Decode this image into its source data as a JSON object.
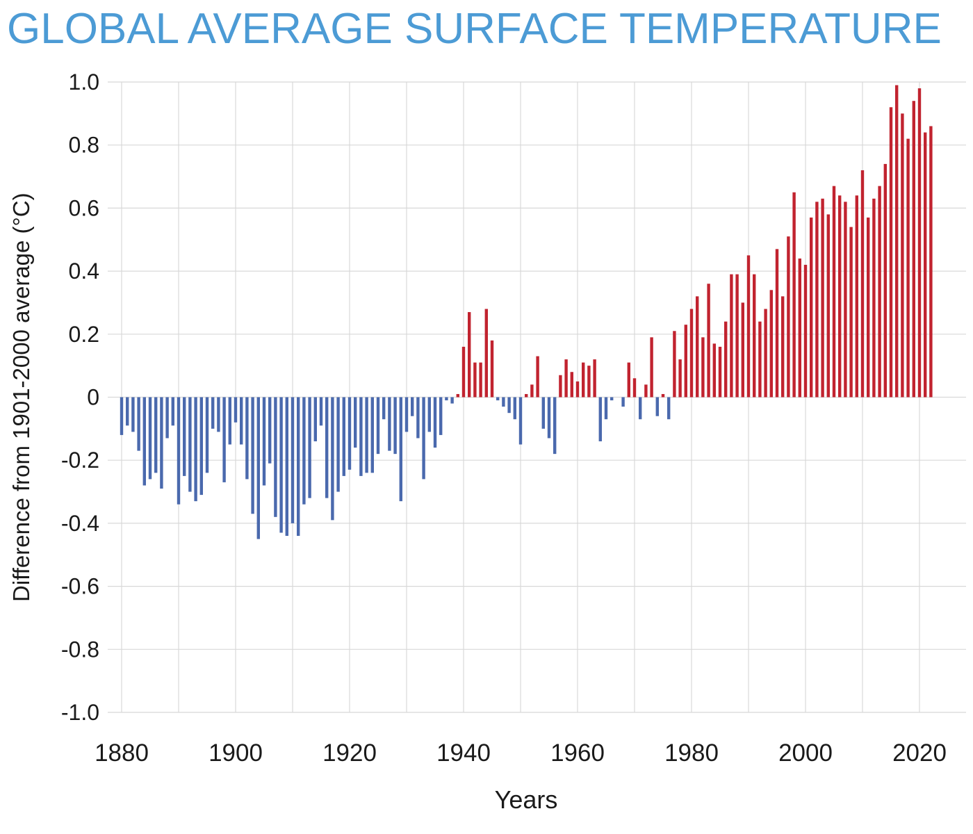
{
  "title": "GLOBAL AVERAGE SURFACE TEMPERATURE",
  "chart_data": {
    "type": "bar",
    "title": "GLOBAL AVERAGE SURFACE TEMPERATURE",
    "xlabel": "Years",
    "ylabel": "Difference from 1901-2000 average (°C)",
    "ylim": [
      -1.0,
      1.0
    ],
    "ytick_step": 0.2,
    "ytick_labels": [
      "1.0",
      "0.8",
      "0.6",
      "0.4",
      "0.2",
      "0",
      "-0.2",
      "-0.4",
      "-0.6",
      "-0.8",
      "-1.0"
    ],
    "xticks": [
      1880,
      1900,
      1920,
      1940,
      1960,
      1980,
      2000,
      2020
    ],
    "x_gridline_step": 10,
    "grid": true,
    "legend": "none",
    "colors": {
      "positive_bar": "#c1232f",
      "negative_bar": "#4a69ad",
      "title_text": "#4c9bd5",
      "gridline": "#d8d8d8",
      "axis_text": "#1a1a1a"
    },
    "start_year": 1880,
    "end_year": 2022,
    "values": [
      -0.12,
      -0.09,
      -0.11,
      -0.17,
      -0.28,
      -0.26,
      -0.24,
      -0.29,
      -0.13,
      -0.09,
      -0.34,
      -0.25,
      -0.3,
      -0.33,
      -0.31,
      -0.24,
      -0.1,
      -0.11,
      -0.27,
      -0.15,
      -0.08,
      -0.15,
      -0.26,
      -0.37,
      -0.45,
      -0.28,
      -0.21,
      -0.38,
      -0.43,
      -0.44,
      -0.4,
      -0.44,
      -0.34,
      -0.32,
      -0.14,
      -0.09,
      -0.32,
      -0.39,
      -0.3,
      -0.25,
      -0.23,
      -0.16,
      -0.25,
      -0.24,
      -0.24,
      -0.18,
      -0.07,
      -0.17,
      -0.18,
      -0.33,
      -0.11,
      -0.06,
      -0.13,
      -0.26,
      -0.11,
      -0.16,
      -0.12,
      -0.01,
      -0.02,
      0.01,
      0.16,
      0.27,
      0.11,
      0.11,
      0.28,
      0.18,
      -0.01,
      -0.03,
      -0.05,
      -0.07,
      -0.15,
      0.01,
      0.04,
      0.13,
      -0.1,
      -0.13,
      -0.18,
      0.07,
      0.12,
      0.08,
      0.05,
      0.11,
      0.1,
      0.12,
      -0.14,
      -0.07,
      -0.01,
      0.0,
      -0.03,
      0.11,
      0.06,
      -0.07,
      0.04,
      0.19,
      -0.06,
      0.01,
      -0.07,
      0.21,
      0.12,
      0.23,
      0.28,
      0.32,
      0.19,
      0.36,
      0.17,
      0.16,
      0.24,
      0.39,
      0.39,
      0.3,
      0.45,
      0.39,
      0.24,
      0.28,
      0.34,
      0.47,
      0.32,
      0.51,
      0.65,
      0.44,
      0.42,
      0.57,
      0.62,
      0.63,
      0.58,
      0.67,
      0.64,
      0.62,
      0.54,
      0.64,
      0.72,
      0.57,
      0.63,
      0.67,
      0.74,
      0.92,
      0.99,
      0.9,
      0.82,
      0.94,
      0.98,
      0.84,
      0.86
    ]
  }
}
